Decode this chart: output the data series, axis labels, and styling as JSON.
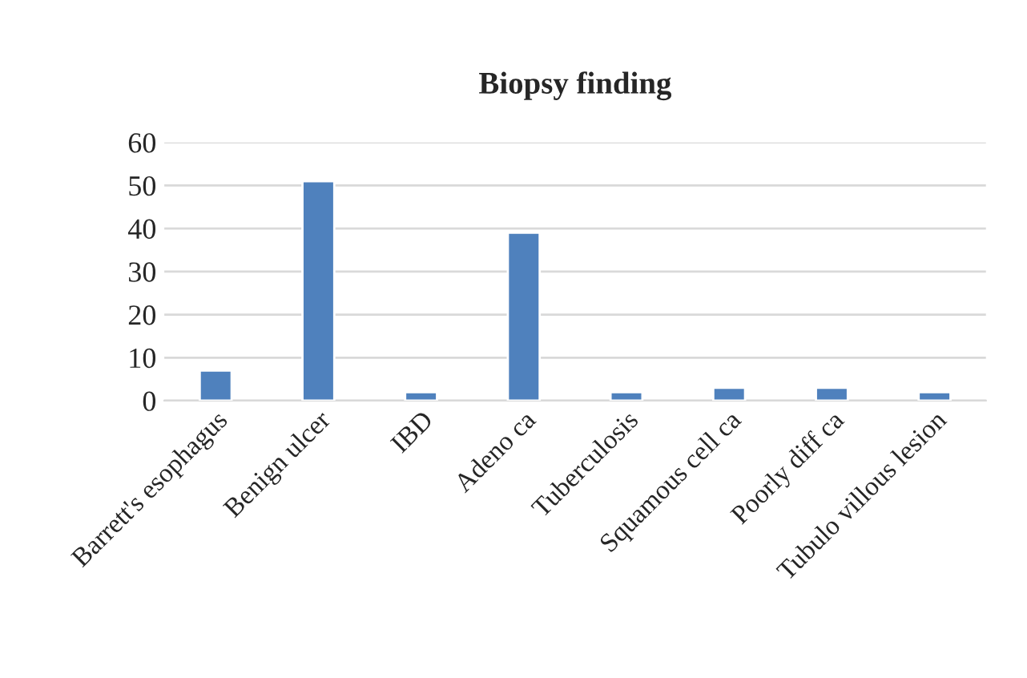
{
  "chart_data": {
    "type": "bar",
    "title": "Biopsy finding",
    "categories": [
      "Barrett's esophagus",
      "Benign ulcer",
      "IBD",
      "Adeno ca",
      "Tuberculosis",
      "Squamous cell ca",
      "Poorly diff ca",
      "Tubulo villous lesion"
    ],
    "values": [
      7,
      51,
      2,
      39,
      2,
      3,
      3,
      2
    ],
    "color": "#4f81bd",
    "ylim": [
      0,
      60
    ],
    "yticks": [
      0,
      10,
      20,
      30,
      40,
      50,
      60
    ],
    "grid": "y"
  }
}
